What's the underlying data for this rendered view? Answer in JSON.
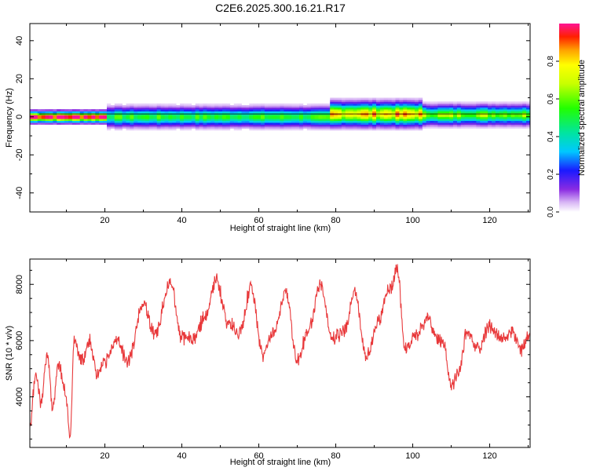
{
  "title": "C2E6.2025.300.16.21.R17",
  "chart_data": [
    {
      "type": "heatmap",
      "title": "C2E6.2025.300.16.21.R17",
      "xlabel": "Height of straight line (km)",
      "ylabel": "Frequency (Hz)",
      "xlim": [
        0.5,
        130.5
      ],
      "ylim": [
        -50,
        49
      ],
      "xticks": [
        20,
        40,
        60,
        80,
        100,
        120
      ],
      "yticks": [
        -40,
        -20,
        0,
        20,
        40
      ],
      "colorbar": {
        "label": "Normalized spectral amplitude",
        "range": [
          0,
          1
        ],
        "ticks": [
          "0.0",
          "0.2",
          "0.4",
          "0.6",
          "0.8"
        ]
      },
      "bands": [
        {
          "from": 0.5,
          "to": 20,
          "center_hz": 0,
          "spread_hz": 3,
          "peak": 0.95
        },
        {
          "from": 20,
          "to": 78,
          "center_hz": 0,
          "spread_hz": 5,
          "peak": 0.5
        },
        {
          "from": 78,
          "to": 102,
          "center_hz": 1.5,
          "spread_hz": 6,
          "peak": 0.8
        },
        {
          "from": 102,
          "to": 130.5,
          "center_hz": 1,
          "spread_hz": 5,
          "peak": 0.6
        }
      ]
    },
    {
      "type": "line",
      "xlabel": "Height of straight line (km)",
      "ylabel": "SNR (10 * v/v)",
      "xlim": [
        0.5,
        130.5
      ],
      "ylim": [
        2200,
        8900
      ],
      "xticks": [
        20,
        40,
        60,
        80,
        100,
        120
      ],
      "yticks": [
        4000,
        6000,
        8000
      ],
      "color": "#e8383a",
      "series": [
        {
          "name": "SNR",
          "x": [
            0.5,
            2,
            3.5,
            5,
            6.5,
            8,
            9.5,
            11,
            12,
            14,
            16,
            18,
            20,
            23,
            26,
            30,
            33,
            37,
            40,
            43,
            46,
            49,
            52,
            55,
            58,
            61,
            64,
            67,
            70,
            73,
            76,
            79,
            82,
            85,
            88,
            91,
            94,
            96,
            98,
            101,
            104,
            106,
            108,
            110,
            112,
            114,
            117,
            120,
            123,
            126,
            128,
            130.5
          ],
          "y": [
            2800,
            4800,
            3800,
            5600,
            3600,
            5200,
            4300,
            2700,
            6000,
            5300,
            6000,
            4800,
            5200,
            6000,
            5300,
            7300,
            6200,
            8100,
            6100,
            6100,
            6800,
            8100,
            6600,
            6300,
            7900,
            5500,
            6300,
            7700,
            5300,
            6400,
            8000,
            6100,
            6300,
            7700,
            5400,
            6700,
            7800,
            8500,
            5700,
            6200,
            6800,
            6100,
            5900,
            4400,
            4900,
            6300,
            5700,
            6500,
            6100,
            6300,
            5600,
            6200
          ]
        }
      ]
    }
  ]
}
